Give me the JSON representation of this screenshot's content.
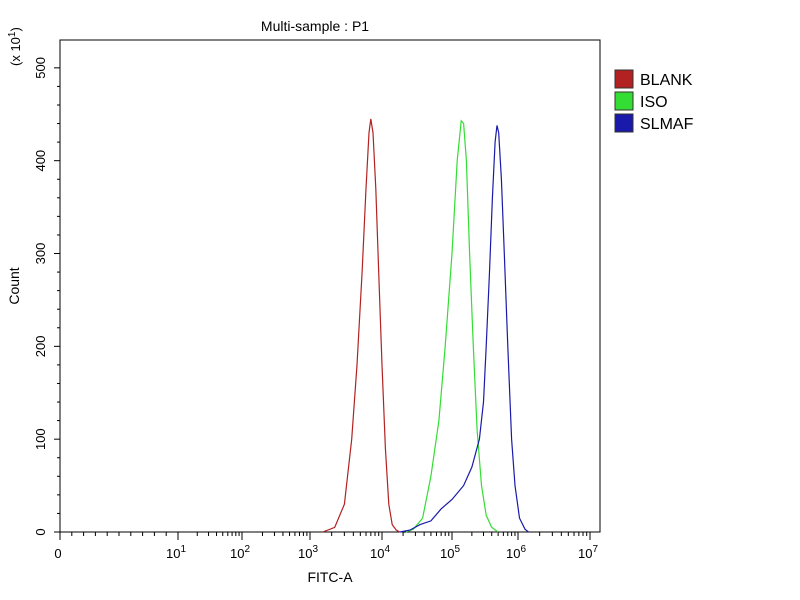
{
  "chart_data": {
    "type": "line",
    "title": "Multi-sample : P1",
    "xlabel": "FITC-A",
    "ylabel": "Count",
    "y_multiplier_label": "(x 10",
    "y_multiplier_exponent": "1",
    "y_multiplier_close": ")",
    "ylim": [
      0,
      530
    ],
    "yticks": [
      0,
      100,
      200,
      300,
      400,
      500
    ],
    "xscale": "biexponential (log decades)",
    "xticks": [
      {
        "base": "0",
        "exp": "",
        "value": 0
      },
      {
        "base": "10",
        "exp": "1",
        "value": 10
      },
      {
        "base": "10",
        "exp": "2",
        "value": 100
      },
      {
        "base": "10",
        "exp": "3",
        "value": 1000
      },
      {
        "base": "10",
        "exp": "4",
        "value": 10000
      },
      {
        "base": "10",
        "exp": "5",
        "value": 100000
      },
      {
        "base": "10",
        "exp": "6",
        "value": 1000000
      },
      {
        "base": "10",
        "exp": "7",
        "value": 10000000
      }
    ],
    "legend_position": "right",
    "series": [
      {
        "name": "BLANK",
        "color": "#b22222",
        "points": [
          [
            1500,
            0
          ],
          [
            2200,
            5
          ],
          [
            3000,
            30
          ],
          [
            3800,
            100
          ],
          [
            4500,
            180
          ],
          [
            5300,
            280
          ],
          [
            6000,
            370
          ],
          [
            6600,
            430
          ],
          [
            7000,
            445
          ],
          [
            7500,
            430
          ],
          [
            8200,
            370
          ],
          [
            9000,
            280
          ],
          [
            10000,
            180
          ],
          [
            11200,
            90
          ],
          [
            12500,
            30
          ],
          [
            14000,
            8
          ],
          [
            16000,
            2
          ],
          [
            18000,
            0
          ]
        ]
      },
      {
        "name": "ISO",
        "color": "#33dd33",
        "points": [
          [
            22000,
            0
          ],
          [
            28000,
            3
          ],
          [
            38000,
            15
          ],
          [
            50000,
            60
          ],
          [
            65000,
            120
          ],
          [
            80000,
            200
          ],
          [
            100000,
            300
          ],
          [
            120000,
            400
          ],
          [
            138000,
            443
          ],
          [
            150000,
            440
          ],
          [
            165000,
            400
          ],
          [
            185000,
            300
          ],
          [
            210000,
            200
          ],
          [
            240000,
            110
          ],
          [
            280000,
            50
          ],
          [
            330000,
            18
          ],
          [
            400000,
            5
          ],
          [
            500000,
            0
          ]
        ]
      },
      {
        "name": "SLMAF",
        "color": "#1a1aaa",
        "points": [
          [
            18000,
            0
          ],
          [
            25000,
            2
          ],
          [
            35000,
            8
          ],
          [
            50000,
            12
          ],
          [
            70000,
            25
          ],
          [
            100000,
            35
          ],
          [
            150000,
            50
          ],
          [
            200000,
            70
          ],
          [
            260000,
            100
          ],
          [
            300000,
            140
          ],
          [
            330000,
            200
          ],
          [
            370000,
            280
          ],
          [
            410000,
            360
          ],
          [
            450000,
            420
          ],
          [
            480000,
            438
          ],
          [
            510000,
            430
          ],
          [
            560000,
            380
          ],
          [
            620000,
            300
          ],
          [
            700000,
            200
          ],
          [
            800000,
            100
          ],
          [
            900000,
            50
          ],
          [
            1050000,
            15
          ],
          [
            1250000,
            3
          ],
          [
            1400000,
            0
          ]
        ]
      }
    ]
  }
}
